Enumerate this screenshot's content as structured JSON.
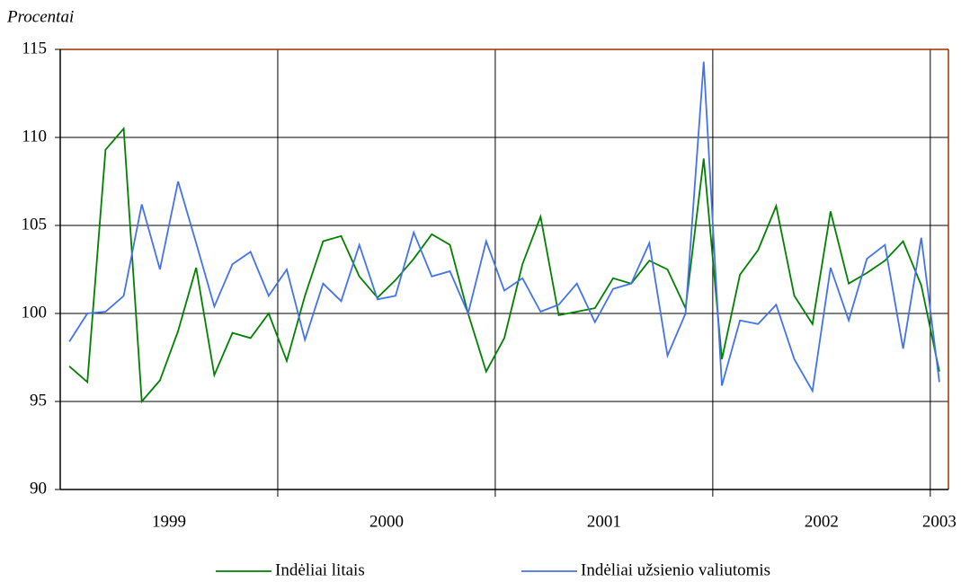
{
  "chart_data": {
    "type": "line",
    "y_axis_label": "Procentai",
    "categories": [
      null,
      null,
      null,
      null,
      null,
      null,
      null,
      null,
      null,
      null,
      null,
      null,
      null,
      null,
      null,
      null,
      null,
      null,
      null,
      null,
      null,
      null,
      null,
      null,
      null,
      null,
      null,
      null,
      null,
      null,
      null,
      null,
      null,
      null,
      null,
      null,
      null,
      null,
      null,
      null,
      null,
      null,
      null,
      null,
      null,
      null,
      null,
      null,
      null
    ],
    "category_groups": [
      {
        "label": "1999",
        "count": 12
      },
      {
        "label": "2000",
        "count": 12
      },
      {
        "label": "2001",
        "count": 12
      },
      {
        "label": "2002",
        "count": 12
      },
      {
        "label": "2003",
        "count": 1
      }
    ],
    "series": [
      {
        "name": "Indėliai litais",
        "color": "#008000",
        "values": [
          97.0,
          96.1,
          109.3,
          110.5,
          95.0,
          96.2,
          99.0,
          102.6,
          96.5,
          98.9,
          98.6,
          100.0,
          97.3,
          101.0,
          104.1,
          104.4,
          102.1,
          100.9,
          101.9,
          103.1,
          104.5,
          103.9,
          100.0,
          96.7,
          98.6,
          102.8,
          105.5,
          99.9,
          100.1,
          100.3,
          102.0,
          101.7,
          103.0,
          102.5,
          100.3,
          108.8,
          97.4,
          102.2,
          103.6,
          106.1,
          101.0,
          99.4,
          105.8,
          101.7,
          102.3,
          103.0,
          104.1,
          101.6,
          96.7
        ]
      },
      {
        "name": "Indėliai užsienio valiutomis",
        "color": "#4472e8",
        "values": [
          98.4,
          100.0,
          100.1,
          101.0,
          106.2,
          102.5,
          107.5,
          104.0,
          100.4,
          102.8,
          103.5,
          101.0,
          102.5,
          98.5,
          101.7,
          100.7,
          103.9,
          100.8,
          101.0,
          104.6,
          102.1,
          102.4,
          100.0,
          104.1,
          101.3,
          102.0,
          100.1,
          100.5,
          101.7,
          99.5,
          101.4,
          101.7,
          104.0,
          97.6,
          100.0,
          114.3,
          95.9,
          99.6,
          99.4,
          100.5,
          97.4,
          95.6,
          102.6,
          99.6,
          103.1,
          103.9,
          98.0,
          104.3,
          96.1
        ]
      }
    ],
    "ylim": [
      90,
      115
    ],
    "yticks": [
      90,
      95,
      100,
      105,
      110,
      115
    ],
    "grid": true,
    "legend": "bottom"
  }
}
